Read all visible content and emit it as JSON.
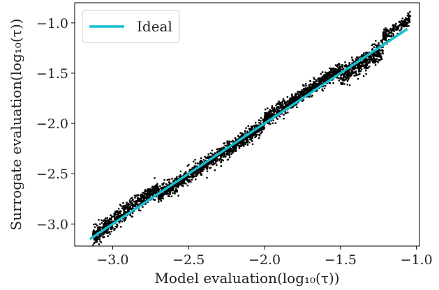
{
  "chart_data": {
    "type": "scatter",
    "title": "",
    "xlabel": "Model evaluation(log₁₀(τ))",
    "ylabel": "Surrogate evaluation(log₁₀(τ))",
    "xlim": [
      -3.25,
      -0.98
    ],
    "ylim": [
      -3.22,
      -0.8
    ],
    "xticks": [
      -3.0,
      -2.5,
      -2.0,
      -1.5,
      -1.0
    ],
    "yticks": [
      -3.0,
      -2.5,
      -2.0,
      -1.5,
      -1.0
    ],
    "xtick_labels": [
      "−3.0",
      "−2.5",
      "−2.0",
      "−1.5",
      "−1.0"
    ],
    "ytick_labels": [
      "−3.0",
      "−2.5",
      "−2.0",
      "−1.5",
      "−1.0"
    ],
    "grid": false,
    "legend_position": "top-left",
    "series": [
      {
        "name": "Ideal",
        "kind": "line",
        "color": "#17becf",
        "x": [
          -3.15,
          -1.06
        ],
        "y": [
          -3.15,
          -1.06
        ]
      },
      {
        "name": "",
        "kind": "scatter",
        "color": "#000000",
        "x_range": [
          -3.15,
          -1.04
        ],
        "y_range": [
          -3.1,
          -0.83
        ],
        "note_points": "dense black points scattered tightly around the ideal line"
      }
    ]
  }
}
